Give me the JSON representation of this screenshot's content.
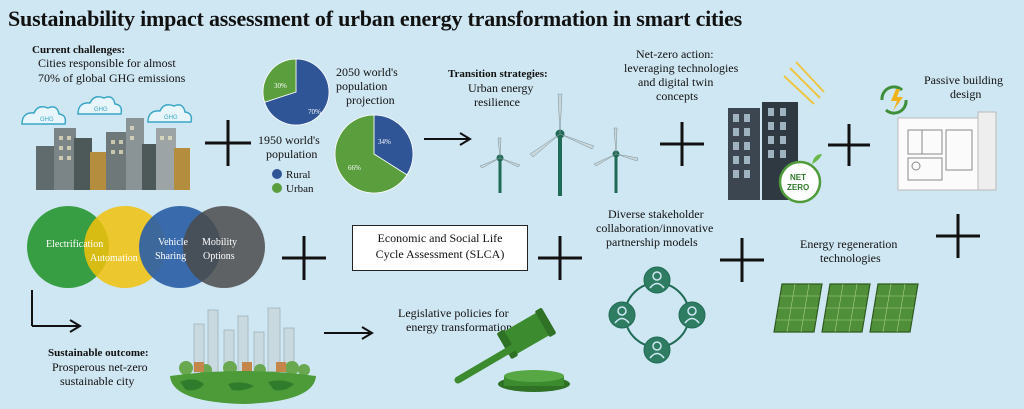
{
  "title": "Sustainability impact assessment of urban energy transformation in smart cities",
  "challenges": {
    "heading": "Current challenges:",
    "line1": "Cities responsible for almost",
    "line2": "70% of global GHG emissions",
    "cloud_label": "GHG"
  },
  "population": {
    "pie1950": {
      "urban_pct": 30,
      "rural_pct": 70,
      "urban_label": "30%",
      "rural_label": "70%"
    },
    "pie2050": {
      "urban_pct": 66,
      "rural_pct": 34,
      "urban_label": "66%",
      "rural_label": "34%"
    },
    "label1950_l1": "1950 world's",
    "label1950_l2": "population",
    "label2050_l1": "2050 world's",
    "label2050_l2": "population",
    "label2050_l3": "projection",
    "legend_rural": "Rural",
    "legend_urban": "Urban",
    "colors": {
      "rural": "#2f5597",
      "urban": "#5a9e3e"
    }
  },
  "transition": {
    "heading": "Transition strategies:",
    "line1": "Urban energy",
    "line2": "resilience"
  },
  "netzero": {
    "line1": "Net-zero action:",
    "line2": "leveraging technologies",
    "line3": "and digital twin",
    "line4": "concepts",
    "badge_l1": "NET",
    "badge_l2": "ZERO"
  },
  "passive": {
    "line1": "Passive building",
    "line2": "design"
  },
  "venn": {
    "c1": "Electrification",
    "c2": "Automation",
    "c3_l1": "Vehicle",
    "c3_l2": "Sharing",
    "c4_l1": "Mobility",
    "c4_l2": "Options"
  },
  "slca": {
    "line1": "Economic and Social Life",
    "line2": "Cycle Assessment (SLCA)"
  },
  "stakeholder": {
    "line1": "Diverse stakeholder",
    "line2": "collaboration/innovative",
    "line3": "partnership models"
  },
  "regeneration": {
    "line1": "Energy regeneration",
    "line2": "technologies"
  },
  "outcome": {
    "heading": "Sustainable outcome:",
    "line1": "Prosperous net-zero",
    "line2": "sustainable city"
  },
  "legislative": {
    "line1": "Legislative policies for",
    "line2": "energy transformation"
  }
}
